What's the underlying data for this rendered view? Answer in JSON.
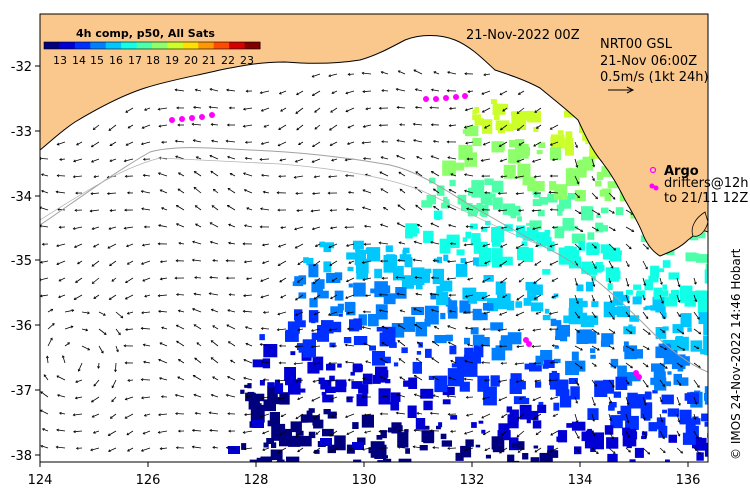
{
  "header": {
    "date_label": "21-Nov-2022 00Z",
    "product_label": "NRT00 GSL",
    "valid_time": "21-Nov 06:00Z",
    "scale_label": "0.5m/s (1kt 24h)"
  },
  "legend": {
    "title": "4h comp, p50, All Sats",
    "ticks": [
      "13",
      "14",
      "15",
      "16",
      "17",
      "18",
      "19",
      "20",
      "21",
      "22",
      "23"
    ],
    "colors": [
      "#00007f",
      "#0000d4",
      "#0030ff",
      "#0080ff",
      "#00c8ff",
      "#10ffe6",
      "#4dffa8",
      "#8dff6a",
      "#ccff2a",
      "#ffe000",
      "#ff9800",
      "#ff4a00",
      "#d40000",
      "#800000"
    ]
  },
  "key": {
    "argo_label": "Argo",
    "drifters_line1": "drifters@12h",
    "drifters_line2": "to 21/11 12Z",
    "argo_color": "#ff00ff",
    "drifter_color": "#ff00ff"
  },
  "axes": {
    "x_ticks": [
      "124",
      "126",
      "128",
      "130",
      "132",
      "134",
      "136"
    ],
    "y_ticks": [
      "-32",
      "-33",
      "-34",
      "-35",
      "-36",
      "-37",
      "-38"
    ],
    "lon_range": [
      124,
      136.5
    ],
    "lat_range": [
      -38.05,
      -31.35
    ]
  },
  "credit": "© IMOS 24-Nov-2022 14:46 Hobart",
  "colors": {
    "land": "#fac88c",
    "ocean": "#ffffff",
    "isobath": "#a0a0a0"
  }
}
